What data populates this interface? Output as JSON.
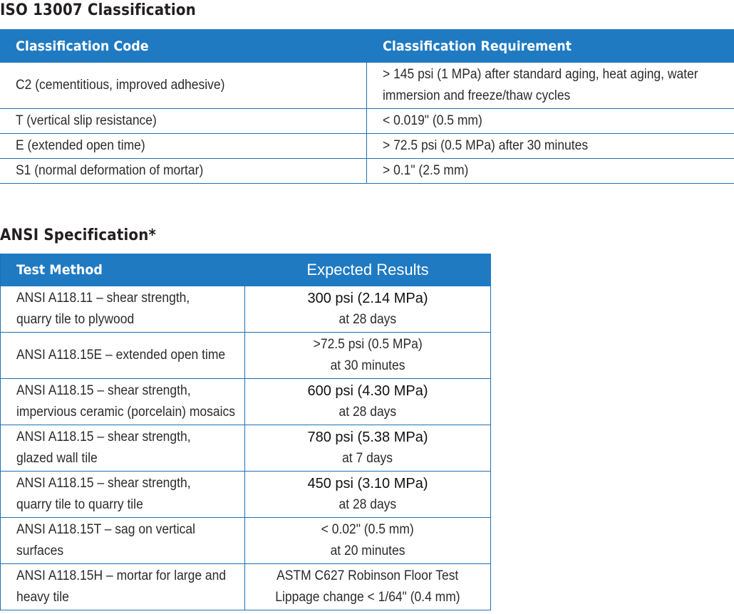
{
  "iso": {
    "title": "ISO 13007 Classification",
    "headers": [
      "Classification Code",
      "Classification Requirement"
    ],
    "rows": [
      {
        "code": "C2 (cementitious, improved adhesive)",
        "req_line1": "> 145 psi (1 MPa) after standard aging, heat aging, water",
        "req_line2": "immersion and freeze/thaw cycles"
      },
      {
        "code": "T (vertical slip resistance)",
        "req_line1": "< 0.019\" (0.5 mm)",
        "req_line2": ""
      },
      {
        "code": "E (extended open time)",
        "req_line1": "> 72.5 psi (0.5 MPa) after 30 minutes",
        "req_line2": ""
      },
      {
        "code": "S1 (normal deformation of mortar)",
        "req_line1": "> 0.1\" (2.5 mm)",
        "req_line2": ""
      }
    ]
  },
  "ansi": {
    "title": "ANSI Specification*",
    "headers": [
      "Test Method",
      "Expected Results"
    ],
    "rows": [
      {
        "method_line1": "ANSI A118.11 – shear strength,",
        "method_line2": "quarry tile to plywood",
        "result_line1": "300 psi (2.14 MPa)",
        "result_line2": "at 28 days"
      },
      {
        "method_line1": "ANSI A118.15E – extended open time",
        "method_line2": "",
        "result_line1": ">72.5 psi (0.5 MPa)",
        "result_line2": "at 30 minutes"
      },
      {
        "method_line1": "ANSI A118.15 – shear strength,",
        "method_line2": "impervious ceramic (porcelain) mosaics",
        "result_line1": "600 psi (4.30 MPa)",
        "result_line2": "at 28 days"
      },
      {
        "method_line1": "ANSI A118.15 – shear strength,",
        "method_line2": "glazed wall tile",
        "result_line1": "780 psi (5.38 MPa)",
        "result_line2": "at 7 days"
      },
      {
        "method_line1": "ANSI A118.15 – shear strength,",
        "method_line2": "quarry tile to quarry tile",
        "result_line1": "450 psi (3.10 MPa)",
        "result_line2": "at 28 days"
      },
      {
        "method_line1": "ANSI A118.15T – sag on vertical",
        "method_line2": "surfaces",
        "result_line1": "< 0.02\" (0.5 mm)",
        "result_line2": "at 20 minutes"
      },
      {
        "method_line1": "ANSI A118.15H – mortar for large and",
        "method_line2": "heavy tile",
        "result_line1": "ASTM C627 Robinson Floor Test",
        "result_line2": "Lippage change < 1/64\" (0.4 mm)"
      }
    ]
  },
  "colors": {
    "header_bg": "#1f7ac2",
    "rule": "#1f6fb2"
  }
}
